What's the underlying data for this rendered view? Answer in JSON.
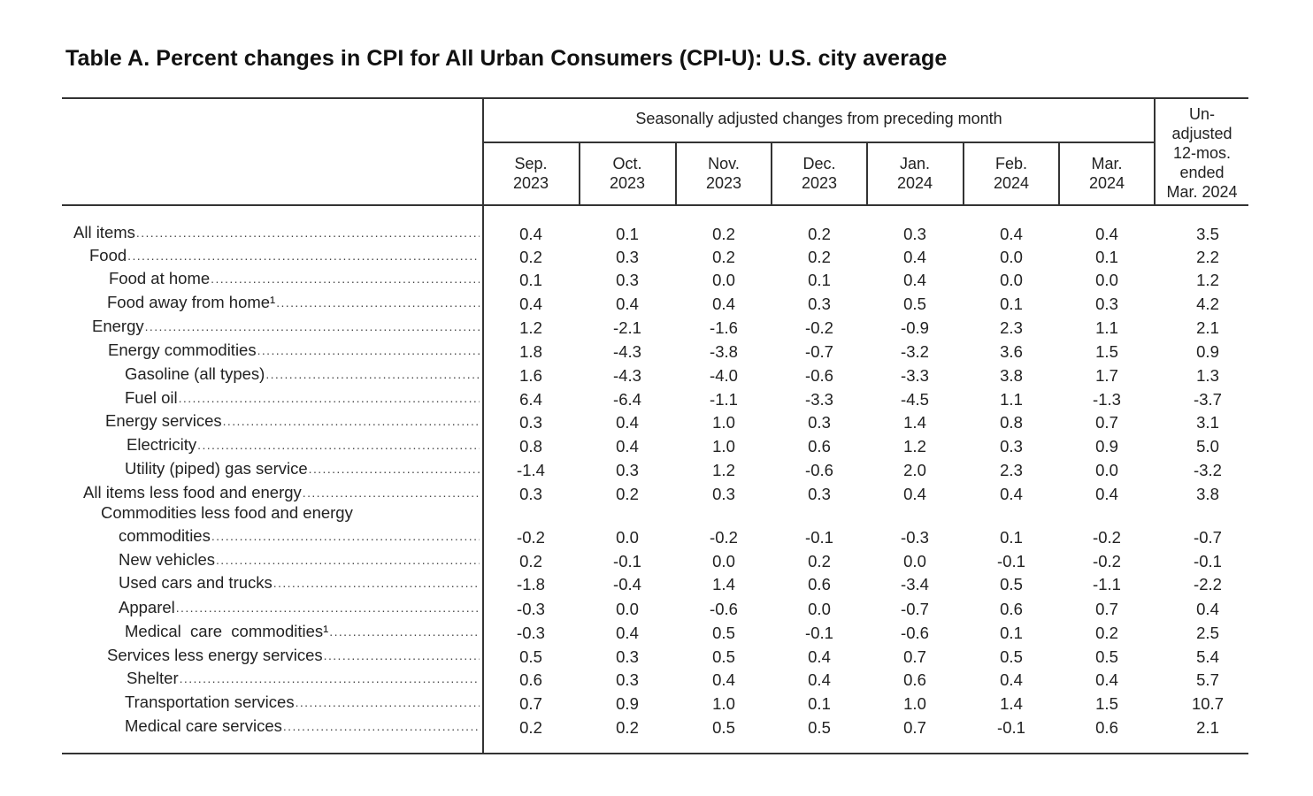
{
  "title": "Table A. Percent changes in CPI for All Urban Consumers (CPI-U): U.S. city average",
  "header": {
    "group_label": "Seasonally adjusted changes from preceding month",
    "months": [
      {
        "line1": "Sep.",
        "line2": "2023"
      },
      {
        "line1": "Oct.",
        "line2": "2023"
      },
      {
        "line1": "Nov.",
        "line2": "2023"
      },
      {
        "line1": "Dec.",
        "line2": "2023"
      },
      {
        "line1": "Jan.",
        "line2": "2024"
      },
      {
        "line1": "Feb.",
        "line2": "2024"
      },
      {
        "line1": "Mar.",
        "line2": "2024"
      }
    ],
    "unadjusted": [
      "Un-",
      "adjusted",
      "12-mos.",
      "ended",
      "Mar. 2024"
    ]
  },
  "rows": [
    {
      "label": "All items",
      "values": [
        "0.4",
        "0.1",
        "0.2",
        "0.2",
        "0.3",
        "0.4",
        "0.4",
        "3.5"
      ]
    },
    {
      "label": "Food",
      "values": [
        "0.2",
        "0.3",
        "0.2",
        "0.2",
        "0.4",
        "0.0",
        "0.1",
        "2.2"
      ]
    },
    {
      "label": "Food at home",
      "values": [
        "0.1",
        "0.3",
        "0.0",
        "0.1",
        "0.4",
        "0.0",
        "0.0",
        "1.2"
      ]
    },
    {
      "label": "Food away from home¹",
      "values": [
        "0.4",
        "0.4",
        "0.4",
        "0.3",
        "0.5",
        "0.1",
        "0.3",
        "4.2"
      ]
    },
    {
      "label": "Energy",
      "values": [
        "1.2",
        "-2.1",
        "-1.6",
        "-0.2",
        "-0.9",
        "2.3",
        "1.1",
        "2.1"
      ]
    },
    {
      "label": "Energy commodities",
      "values": [
        "1.8",
        "-4.3",
        "-3.8",
        "-0.7",
        "-3.2",
        "3.6",
        "1.5",
        "0.9"
      ]
    },
    {
      "label": "Gasoline (all types)",
      "values": [
        "1.6",
        "-4.3",
        "-4.0",
        "-0.6",
        "-3.3",
        "3.8",
        "1.7",
        "1.3"
      ]
    },
    {
      "label": "Fuel oil",
      "values": [
        "6.4",
        "-6.4",
        "-1.1",
        "-3.3",
        "-4.5",
        "1.1",
        "-1.3",
        "-3.7"
      ]
    },
    {
      "label": "Energy services",
      "values": [
        "0.3",
        "0.4",
        "1.0",
        "0.3",
        "1.4",
        "0.8",
        "0.7",
        "3.1"
      ]
    },
    {
      "label": "Electricity",
      "values": [
        "0.8",
        "0.4",
        "1.0",
        "0.6",
        "1.2",
        "0.3",
        "0.9",
        "5.0"
      ]
    },
    {
      "label": "Utility (piped) gas service",
      "values": [
        "-1.4",
        "0.3",
        "1.2",
        "-0.6",
        "2.0",
        "2.3",
        "0.0",
        "-3.2"
      ]
    },
    {
      "label": "All items less food and energy",
      "values": [
        "0.3",
        "0.2",
        "0.3",
        "0.3",
        "0.4",
        "0.4",
        "0.4",
        "3.8"
      ]
    },
    {
      "label_line1": "Commodities less food and energy",
      "label": "commodities",
      "values": [
        "-0.2",
        "0.0",
        "-0.2",
        "-0.1",
        "-0.3",
        "0.1",
        "-0.2",
        "-0.7"
      ]
    },
    {
      "label": "New vehicles",
      "values": [
        "0.2",
        "-0.1",
        "0.0",
        "0.2",
        "0.0",
        "-0.1",
        "-0.2",
        "-0.1"
      ]
    },
    {
      "label": "Used cars and trucks",
      "values": [
        "-1.8",
        "-0.4",
        "1.4",
        "0.6",
        "-3.4",
        "0.5",
        "-1.1",
        "-2.2"
      ]
    },
    {
      "label": "Apparel",
      "values": [
        "-0.3",
        "0.0",
        "-0.6",
        "0.0",
        "-0.7",
        "0.6",
        "0.7",
        "0.4"
      ]
    },
    {
      "label": "Medical  care  commodities¹",
      "values": [
        "-0.3",
        "0.4",
        "0.5",
        "-0.1",
        "-0.6",
        "0.1",
        "0.2",
        "2.5"
      ]
    },
    {
      "label": "Services less energy services",
      "values": [
        "0.5",
        "0.3",
        "0.5",
        "0.4",
        "0.7",
        "0.5",
        "0.5",
        "5.4"
      ]
    },
    {
      "label": "Shelter",
      "values": [
        "0.6",
        "0.3",
        "0.4",
        "0.4",
        "0.6",
        "0.4",
        "0.4",
        "5.7"
      ]
    },
    {
      "label": "Transportation services",
      "values": [
        "0.7",
        "0.9",
        "1.0",
        "0.1",
        "1.0",
        "1.4",
        "1.5",
        "10.7"
      ]
    },
    {
      "label": "Medical care services",
      "values": [
        "0.2",
        "0.2",
        "0.5",
        "0.5",
        "0.7",
        "-0.1",
        "0.6",
        "2.1"
      ]
    }
  ]
}
